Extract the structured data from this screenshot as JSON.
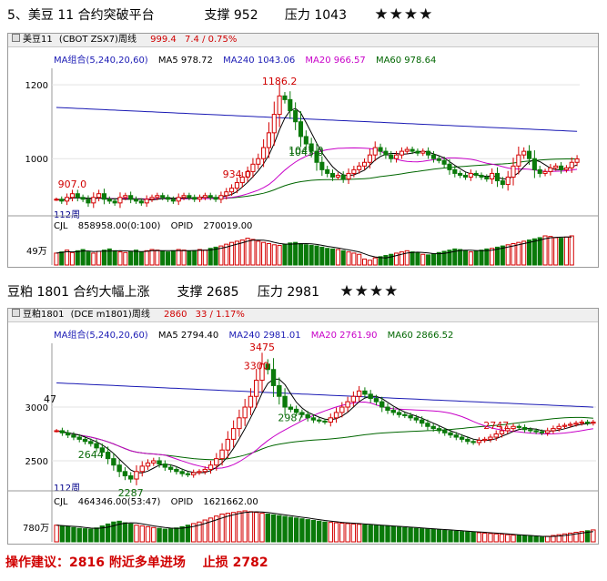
{
  "colors": {
    "up": "#d40000",
    "down": "#0a7a0a",
    "ma5": "#000000",
    "ma240": "#1a1ab4",
    "ma20": "#c800c8",
    "ma60": "#006600",
    "vol_up": "#d40000",
    "vol_down": "#0a7a0a"
  },
  "section1": {
    "title": "5、美豆 11 合约突破平台",
    "support": "支撑 952",
    "pressure": "压力 1043",
    "stars": "★★★★",
    "panel": {
      "name": "美豆11",
      "code": "(CBOT ZSX7)周线",
      "price": "999.4",
      "change": "7.4 / 0.75%",
      "ma_group": "MA组合(5,240,20,60)",
      "ma5": "MA5 978.72",
      "ma240": "MA240 1043.06",
      "ma20": "MA20 966.57",
      "ma60": "MA60 978.64",
      "vol_label": "CJL",
      "vol_value": "858958.00(0:100)",
      "opid_label": "OPID",
      "opid_value": "270019.00",
      "vol_tick": "49万",
      "period": "112周"
    },
    "chart_data": {
      "type": "candlestick",
      "title": "美豆11",
      "yticks": [
        1200,
        1000
      ],
      "ylim": [
        850,
        1235
      ],
      "annotations": [
        {
          "label": "1186.2",
          "value": 1186.2
        },
        {
          "label": "1043.0",
          "value": 1043.0
        },
        {
          "label": "1047.0",
          "value": 1047.0
        },
        {
          "label": "934.0",
          "value": 934.0
        },
        {
          "label": "907.0",
          "value": 907.0
        }
      ],
      "close": [
        890,
        885,
        895,
        905,
        895,
        890,
        880,
        895,
        905,
        890,
        885,
        880,
        895,
        900,
        890,
        885,
        880,
        890,
        895,
        900,
        895,
        890,
        885,
        895,
        900,
        895,
        890,
        895,
        900,
        895,
        890,
        900,
        910,
        920,
        935,
        950,
        965,
        985,
        1000,
        1030,
        1070,
        1120,
        1170,
        1160,
        1130,
        1100,
        1060,
        1040,
        1020,
        990,
        970,
        960,
        950,
        955,
        945,
        960,
        970,
        980,
        990,
        1010,
        1030,
        1020,
        1010,
        1000,
        1010,
        1020,
        1025,
        1020,
        1015,
        1020,
        1010,
        1000,
        995,
        985,
        970,
        960,
        955,
        950,
        960,
        955,
        950,
        945,
        960,
        940,
        930,
        950,
        980,
        1010,
        1020,
        1000,
        970,
        960,
        965,
        975,
        980,
        970,
        975,
        990,
        999.4
      ],
      "vol": [
        20,
        22,
        25,
        21,
        24,
        26,
        22,
        20,
        23,
        25,
        27,
        24,
        22,
        21,
        23,
        25,
        22,
        24,
        26,
        25,
        23,
        22,
        24,
        26,
        25,
        23,
        24,
        26,
        25,
        28,
        30,
        32,
        35,
        38,
        40,
        42,
        45,
        43,
        40,
        38,
        36,
        34,
        33,
        35,
        37,
        38,
        36,
        34,
        33,
        32,
        30,
        28,
        27,
        26,
        24,
        22,
        20,
        18,
        10,
        8,
        12,
        14,
        16,
        18,
        20,
        22,
        24,
        22,
        20,
        18,
        17,
        19,
        21,
        23,
        25,
        27,
        26,
        24,
        22,
        23,
        25,
        27,
        28,
        30,
        32,
        34,
        36,
        38,
        40,
        42,
        44,
        46,
        49,
        48,
        46,
        45,
        47,
        49
      ]
    }
  },
  "section2": {
    "title": "豆粕 1801 合约大幅上涨",
    "support": "支撑 2685",
    "pressure": "压力 2981",
    "stars": "★★★★",
    "panel": {
      "name": "豆粕1801",
      "code": "(DCE m1801)周线",
      "price": "2860",
      "change": "33 / 1.17%",
      "ma_group": "MA组合(5,240,20,60)",
      "ma5": "MA5 2794.40",
      "ma240": "MA240 2981.01",
      "ma20": "MA20 2761.90",
      "ma60": "MA60 2866.52",
      "vol_label": "CJL",
      "vol_value": "464346.00(53:47)",
      "opid_label": "OPID",
      "opid_value": "1621662.00",
      "vol_tick": "780万",
      "period": "112周"
    },
    "chart_data": {
      "type": "candlestick",
      "title": "豆粕1801",
      "yticks": [
        3000,
        2500
      ],
      "ylim": [
        2220,
        3560
      ],
      "annotations": [
        {
          "label": "3475",
          "value": 3475
        },
        {
          "label": "3300",
          "value": 3300
        },
        {
          "label": "2987",
          "value": 2987
        },
        {
          "label": "2747",
          "value": 2747
        },
        {
          "label": "2644",
          "value": 2644
        },
        {
          "label": "2287",
          "value": 2287
        },
        {
          "label": "47",
          "value": 2990
        }
      ],
      "close": [
        2780,
        2760,
        2740,
        2720,
        2700,
        2680,
        2660,
        2620,
        2580,
        2520,
        2460,
        2400,
        2360,
        2330,
        2400,
        2450,
        2480,
        2500,
        2470,
        2440,
        2420,
        2400,
        2380,
        2370,
        2390,
        2400,
        2420,
        2460,
        2520,
        2600,
        2700,
        2800,
        2900,
        3000,
        3100,
        3250,
        3400,
        3350,
        3200,
        3100,
        3000,
        2980,
        2950,
        2930,
        2900,
        2880,
        2870,
        2860,
        2900,
        2950,
        3000,
        3050,
        3100,
        3150,
        3120,
        3080,
        3050,
        3000,
        2970,
        2950,
        2930,
        2920,
        2900,
        2880,
        2850,
        2820,
        2800,
        2780,
        2760,
        2740,
        2720,
        2700,
        2680,
        2670,
        2690,
        2700,
        2720,
        2750,
        2780,
        2800,
        2820,
        2810,
        2790,
        2780,
        2770,
        2760,
        2780,
        2800,
        2820,
        2830,
        2840,
        2850,
        2860,
        2850,
        2860
      ],
      "vol": [
        420,
        400,
        380,
        360,
        340,
        330,
        320,
        350,
        400,
        450,
        500,
        520,
        480,
        450,
        420,
        400,
        380,
        360,
        340,
        320,
        330,
        350,
        380,
        420,
        460,
        500,
        550,
        600,
        650,
        700,
        720,
        740,
        760,
        780,
        760,
        740,
        720,
        700,
        680,
        660,
        640,
        620,
        600,
        580,
        560,
        540,
        520,
        500,
        490,
        480,
        470,
        460,
        450,
        440,
        430,
        420,
        410,
        400,
        390,
        380,
        370,
        360,
        350,
        340,
        330,
        320,
        310,
        300,
        290,
        280,
        270,
        260,
        250,
        240,
        230,
        220,
        210,
        200,
        190,
        180,
        170,
        160,
        150,
        140,
        130,
        120,
        140,
        160,
        180,
        200,
        220,
        240,
        260,
        280,
        300
      ]
    }
  },
  "advice": {
    "text": "操作建议：2816 附近多单进场",
    "stop": "止损 2782"
  }
}
